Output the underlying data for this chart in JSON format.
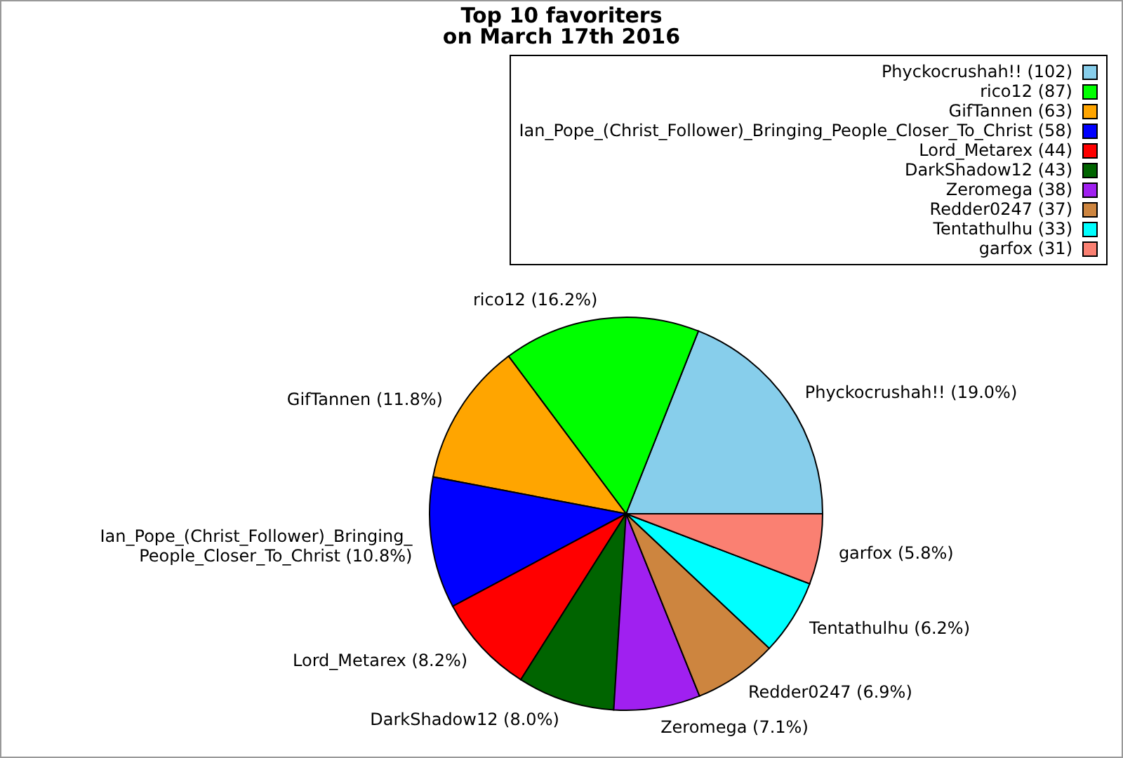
{
  "chart_data": {
    "type": "pie",
    "title": "Top 10 favoriters\non March 17th 2016",
    "categories": [
      "Phyckocrushah!! (102)",
      "rico12 (87)",
      "GifTannen (63)",
      "Ian_Pope_(Christ_Follower)_Bringing_People_Closer_To_Christ (58)",
      "Lord_Metarex (44)",
      "DarkShadow12 (43)",
      "Zeromega (38)",
      "Redder0247 (37)",
      "Tentathulhu (33)",
      "garfox (31)"
    ],
    "values": [
      19.0,
      16.2,
      11.8,
      10.8,
      8.2,
      8.0,
      7.1,
      6.9,
      6.2,
      5.8
    ],
    "colors": [
      "#87ceeb",
      "#00ff00",
      "#ffa500",
      "#0000ff",
      "#ff0000",
      "#006400",
      "#a020f0",
      "#cd853f",
      "#00ffff",
      "#fa8072"
    ],
    "value_labels": [
      "Phyckocrushah!! (19.0%)",
      "rico12 (16.2%)",
      "GifTannen (11.8%)",
      "Ian_Pope_(Christ_Follower)_Bringing_People_Closer_To_Christ (10.8%)",
      "Lord_Metarex (8.2%)",
      "DarkShadow12 (8.0%)",
      "Zeromega (7.1%)",
      "Redder0247 (6.9%)",
      "Tentathulhu (6.2%)",
      "garfox (5.8%)"
    ],
    "legend": "top right"
  }
}
